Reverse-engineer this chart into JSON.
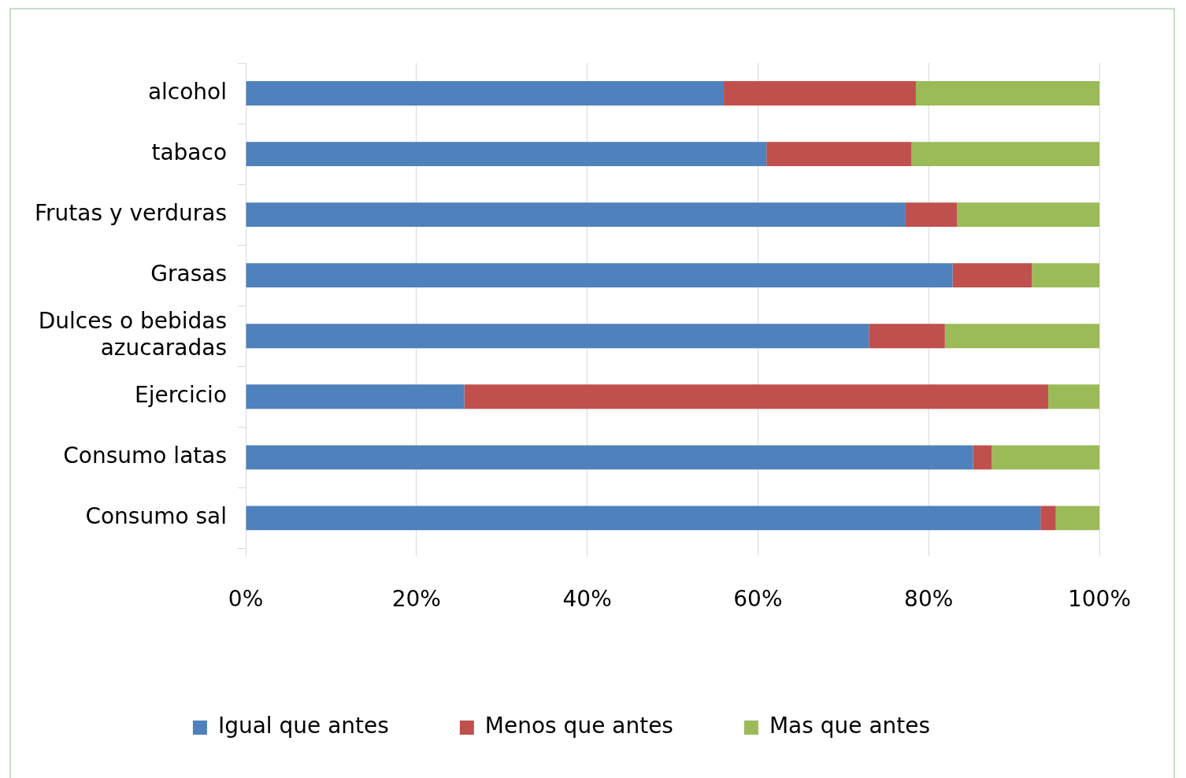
{
  "chart_data": {
    "type": "bar",
    "orientation": "horizontal",
    "stacked": true,
    "categories": [
      "alcohol",
      "tabaco",
      "Frutas y verduras",
      "Grasas",
      "Dulces o bebidas azucaradas",
      "Ejercicio",
      "Consumo latas",
      "Consumo sal"
    ],
    "series": [
      {
        "name": "Igual que antes",
        "color": "#4f81bd",
        "values": [
          56,
          61,
          77.3,
          82.8,
          73,
          25.6,
          85.2,
          93.1
        ]
      },
      {
        "name": "Menos que antes",
        "color": "#c0504d",
        "values": [
          22.5,
          17,
          6,
          9.3,
          8.9,
          68.4,
          2.2,
          1.8
        ]
      },
      {
        "name": "Mas que antes",
        "color": "#9bbb59",
        "values": [
          21.5,
          22,
          16.7,
          7.9,
          18.1,
          6,
          12.6,
          5.1
        ]
      }
    ],
    "xlim": [
      0,
      100
    ],
    "xticks": [
      {
        "value": 0,
        "label": "0%"
      },
      {
        "value": 20,
        "label": "20%"
      },
      {
        "value": 40,
        "label": "40%"
      },
      {
        "value": 60,
        "label": "60%"
      },
      {
        "value": 80,
        "label": "80%"
      },
      {
        "value": 100,
        "label": "100%"
      }
    ],
    "grid": "x",
    "legend": "bottom"
  }
}
